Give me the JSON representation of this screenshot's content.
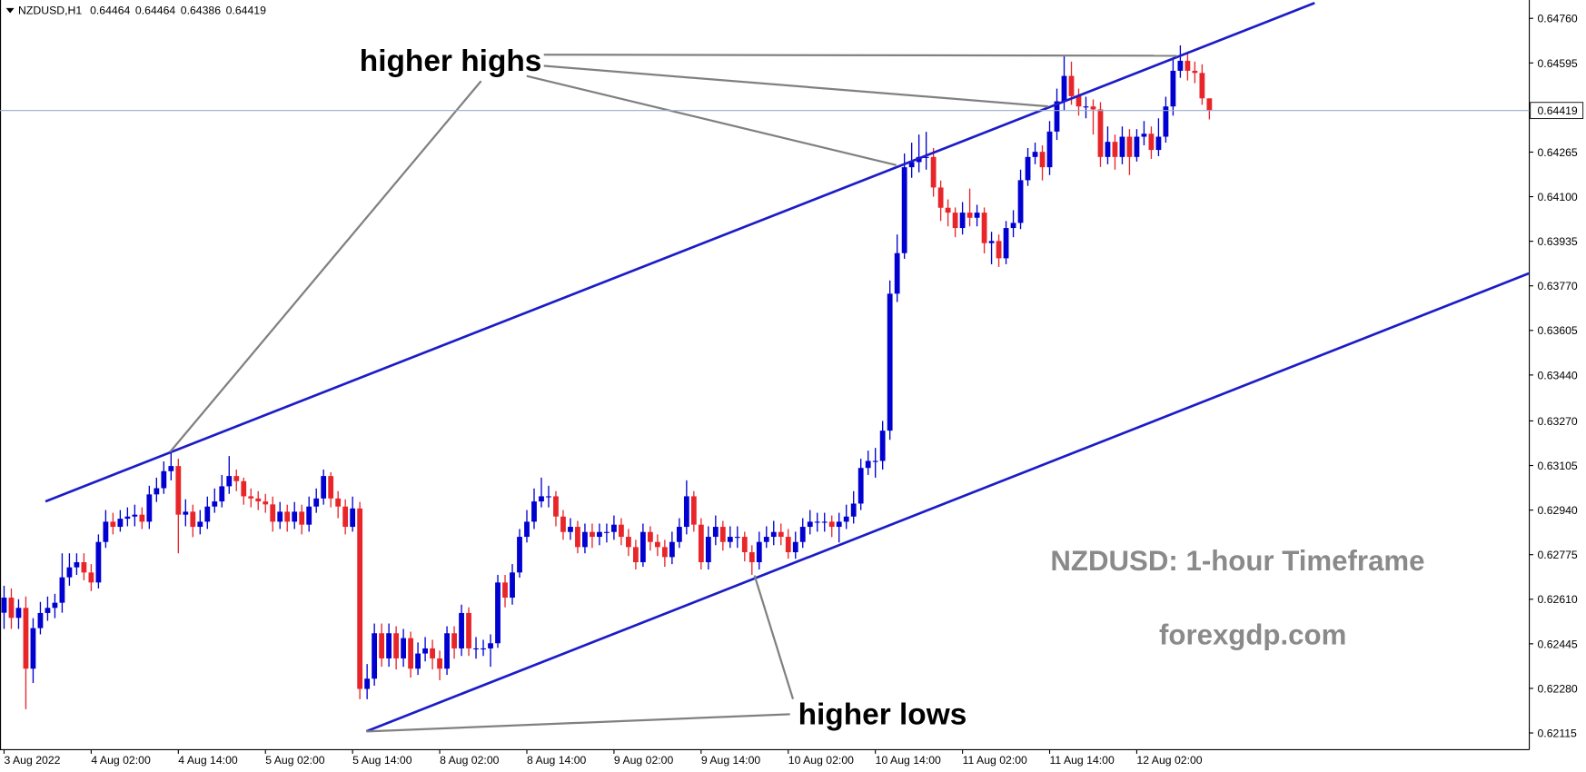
{
  "chart_data": {
    "type": "candlestick",
    "title": "NZDUSD,H1",
    "annotations": [
      "higher highs",
      "higher lows"
    ],
    "watermark": "NZDUSD: 1-hour Timeframe",
    "source": "forexgdp.com",
    "up_color": "#0000d0",
    "down_color": "#e8262a",
    "trendline_color": "#1c1cc8",
    "price_line_color": "#9aaecb",
    "xlim": [
      -0.56,
      210.06
    ],
    "ylim": [
      0.62053,
      0.64828
    ],
    "xticks": [
      {
        "value": 0,
        "label": "3 Aug 2022"
      },
      {
        "value": 12,
        "label": "4 Aug 02:00"
      },
      {
        "value": 24,
        "label": "4 Aug 14:00"
      },
      {
        "value": 36,
        "label": "5 Aug 02:00"
      },
      {
        "value": 48,
        "label": "5 Aug 14:00"
      },
      {
        "value": 60,
        "label": "8 Aug 02:00"
      },
      {
        "value": 72,
        "label": "8 Aug 14:00"
      },
      {
        "value": 84,
        "label": "9 Aug 02:00"
      },
      {
        "value": 96,
        "label": "9 Aug 14:00"
      },
      {
        "value": 108,
        "label": "10 Aug 02:00"
      },
      {
        "value": 120,
        "label": "10 Aug 14:00"
      },
      {
        "value": 132,
        "label": "11 Aug 02:00"
      },
      {
        "value": 144,
        "label": "11 Aug 14:00"
      },
      {
        "value": 156,
        "label": "12 Aug 02:00"
      }
    ],
    "yticks": [
      {
        "value": 0.6476,
        "label": "0.64760"
      },
      0.64595,
      0.64265,
      {
        "value": 0.641,
        "label": "0.64100"
      },
      0.63935,
      {
        "value": 0.6377,
        "label": "0.63770"
      },
      0.63605,
      {
        "value": 0.6344,
        "label": "0.63440"
      },
      {
        "value": 0.6327,
        "label": "0.63270"
      },
      0.63105,
      {
        "value": 0.6294,
        "label": "0.62940"
      },
      0.62775,
      {
        "value": 0.6261,
        "label": "0.62610"
      },
      0.62445,
      {
        "value": 0.6228,
        "label": "0.62280"
      },
      0.62115
    ],
    "trendlines": [
      {
        "x": [
          5.7,
          180.5
        ],
        "y": [
          0.62972,
          0.64817
        ]
      },
      {
        "x": [
          49.9,
          210.0
        ],
        "y": [
          0.62121,
          0.63816
        ]
      }
    ],
    "open": [
      0.6256,
      0.62616,
      0.62541,
      0.62578,
      0.62353,
      0.62503,
      0.62559,
      0.62578,
      0.62597,
      0.62691,
      0.62728,
      0.62747,
      0.62709,
      0.62672,
      0.62822,
      0.62897,
      0.62878,
      0.62908,
      0.62916,
      0.62923,
      0.62897,
      0.62998,
      0.63021,
      0.63084,
      0.63103,
      0.62923,
      0.62934,
      0.62878,
      0.62897,
      0.62953,
      0.62972,
      0.63028,
      0.63066,
      0.63047,
      0.62991,
      0.62983,
      0.62972,
      0.62961,
      0.62897,
      0.62934,
      0.62897,
      0.62934,
      0.62886,
      0.62953,
      0.62983,
      0.63066,
      0.62983,
      0.62953,
      0.62878,
      0.62946,
      0.62278,
      0.62316,
      0.62484,
      0.62391,
      0.62484,
      0.62391,
      0.62466,
      0.62353,
      0.62409,
      0.62428,
      0.62391,
      0.62353,
      0.62484,
      0.62428,
      0.62559,
      0.62428,
      0.62428,
      0.62428,
      0.62447,
      0.62672,
      0.62616,
      0.62709,
      0.62841,
      0.62897,
      0.62972,
      0.62991,
      0.62991,
      0.62916,
      0.62859,
      0.62878,
      0.62803,
      0.62859,
      0.62841,
      0.62859,
      0.62859,
      0.62886,
      0.62841,
      0.62803,
      0.62747,
      0.62859,
      0.62822,
      0.62803,
      0.62766,
      0.62822,
      0.62878,
      0.62991,
      0.62886,
      0.62747,
      0.62841,
      0.62878,
      0.62822,
      0.62841,
      0.62841,
      0.62784,
      0.62747,
      0.62822,
      0.62841,
      0.62859,
      0.62841,
      0.62784,
      0.62822,
      0.62878,
      0.62897,
      0.62897,
      0.62897,
      0.62878,
      0.62897,
      0.62916,
      0.62964,
      0.63096,
      0.63122,
      0.63122,
      0.63234,
      0.63741,
      0.63891,
      0.64209,
      0.64228,
      0.64247,
      0.64247,
      0.64134,
      0.64059,
      0.64041,
      0.63984,
      0.64041,
      0.64022,
      0.64041,
      0.63928,
      0.63936,
      0.63872,
      0.63984,
      0.64003,
      0.64161,
      0.64247,
      0.64266,
      0.64209,
      0.64341,
      0.64453,
      0.64547,
      0.64472,
      0.64434,
      0.64434,
      0.64423,
      0.64247,
      0.64303,
      0.64247,
      0.64322,
      0.64247,
      0.64322,
      0.64333,
      0.64273,
      0.64322,
      0.64434,
      0.64566,
      0.64603,
      0.64566,
      0.64558,
      0.64464
    ],
    "high": [
      0.6266,
      0.6265,
      0.6261,
      0.6262,
      0.6254,
      0.626,
      0.6262,
      0.6263,
      0.6278,
      0.6278,
      0.6278,
      0.6278,
      0.6274,
      0.6285,
      0.6294,
      0.6293,
      0.6294,
      0.6295,
      0.6296,
      0.6295,
      0.6303,
      0.6306,
      0.6312,
      0.6316,
      0.6313,
      0.6298,
      0.6296,
      0.6294,
      0.6299,
      0.6302,
      0.6307,
      0.6314,
      0.6309,
      0.6306,
      0.6302,
      0.6301,
      0.63,
      0.6299,
      0.6297,
      0.6296,
      0.6297,
      0.6296,
      0.6299,
      0.6302,
      0.6309,
      0.6308,
      0.6301,
      0.6298,
      0.6299,
      0.6297,
      0.6237,
      0.6252,
      0.6252,
      0.6252,
      0.6251,
      0.625,
      0.6249,
      0.6245,
      0.6247,
      0.6246,
      0.6242,
      0.6251,
      0.6251,
      0.6259,
      0.6258,
      0.6247,
      0.6246,
      0.6248,
      0.627,
      0.627,
      0.6274,
      0.6287,
      0.6294,
      0.6302,
      0.6306,
      0.6303,
      0.6301,
      0.6294,
      0.6291,
      0.629,
      0.6289,
      0.6289,
      0.6289,
      0.6289,
      0.6292,
      0.6291,
      0.6287,
      0.6283,
      0.6289,
      0.6288,
      0.6285,
      0.6283,
      0.6286,
      0.6291,
      0.6305,
      0.6301,
      0.6291,
      0.6288,
      0.6292,
      0.629,
      0.6288,
      0.6288,
      0.6286,
      0.6281,
      0.6286,
      0.6288,
      0.629,
      0.6289,
      0.6287,
      0.6286,
      0.6291,
      0.6294,
      0.6293,
      0.6293,
      0.6292,
      0.6293,
      0.6296,
      0.6301,
      0.6313,
      0.6316,
      0.6317,
      0.6327,
      0.6379,
      0.6396,
      0.6426,
      0.643,
      0.6433,
      0.6434,
      0.6428,
      0.6416,
      0.6409,
      0.6406,
      0.6408,
      0.6413,
      0.6407,
      0.6406,
      0.6397,
      0.6396,
      0.6401,
      0.6405,
      0.642,
      0.6428,
      0.643,
      0.6429,
      0.6438,
      0.645,
      0.6462,
      0.646,
      0.645,
      0.6447,
      0.6446,
      0.6445,
      0.6436,
      0.6433,
      0.6436,
      0.6435,
      0.6435,
      0.6438,
      0.6436,
      0.6439,
      0.6447,
      0.6461,
      0.6466,
      0.6463,
      0.646,
      0.6459,
      0.64464
    ],
    "low": [
      0.625,
      0.625,
      0.625,
      0.62203,
      0.623,
      0.6248,
      0.6253,
      0.6254,
      0.6256,
      0.6266,
      0.627,
      0.6268,
      0.6264,
      0.6265,
      0.628,
      0.6285,
      0.6286,
      0.6288,
      0.6288,
      0.6287,
      0.6287,
      0.6297,
      0.63,
      0.6305,
      0.6278,
      0.6288,
      0.6284,
      0.6285,
      0.6287,
      0.6293,
      0.6295,
      0.63,
      0.6301,
      0.6296,
      0.6295,
      0.6294,
      0.6293,
      0.6286,
      0.6287,
      0.6286,
      0.6287,
      0.6285,
      0.6286,
      0.6293,
      0.6296,
      0.6295,
      0.6291,
      0.6285,
      0.6286,
      0.6224,
      0.6224,
      0.6229,
      0.6236,
      0.6236,
      0.6235,
      0.6236,
      0.6232,
      0.6233,
      0.6238,
      0.6235,
      0.6231,
      0.6233,
      0.6239,
      0.624,
      0.624,
      0.6239,
      0.624,
      0.6236,
      0.6243,
      0.6258,
      0.6259,
      0.6269,
      0.6282,
      0.6287,
      0.6295,
      0.6295,
      0.6288,
      0.6283,
      0.6283,
      0.6278,
      0.6278,
      0.628,
      0.6281,
      0.6282,
      0.6283,
      0.6281,
      0.6277,
      0.6272,
      0.6273,
      0.6279,
      0.6277,
      0.6273,
      0.6274,
      0.628,
      0.6285,
      0.6286,
      0.6272,
      0.6272,
      0.6281,
      0.6279,
      0.628,
      0.628,
      0.6275,
      0.627,
      0.6272,
      0.628,
      0.6281,
      0.6281,
      0.6276,
      0.6276,
      0.628,
      0.6285,
      0.6286,
      0.6286,
      0.6284,
      0.6282,
      0.6287,
      0.6289,
      0.6294,
      0.6307,
      0.6306,
      0.6309,
      0.632,
      0.6371,
      0.6387,
      0.6417,
      0.6419,
      0.642,
      0.641,
      0.6401,
      0.6399,
      0.6395,
      0.6396,
      0.6399,
      0.6399,
      0.6389,
      0.6385,
      0.6384,
      0.6385,
      0.6395,
      0.6398,
      0.6414,
      0.6422,
      0.6416,
      0.6418,
      0.6431,
      0.6442,
      0.6444,
      0.644,
      0.6439,
      0.6433,
      0.6421,
      0.6422,
      0.642,
      0.6422,
      0.6418,
      0.6423,
      0.6429,
      0.6424,
      0.6425,
      0.643,
      0.644,
      0.6454,
      0.6453,
      0.6452,
      0.6444,
      0.64386
    ],
    "close": [
      0.62616,
      0.62541,
      0.62578,
      0.62353,
      0.62503,
      0.62559,
      0.62578,
      0.62597,
      0.62691,
      0.62728,
      0.62747,
      0.62709,
      0.62672,
      0.62822,
      0.62897,
      0.62878,
      0.62908,
      0.62916,
      0.62923,
      0.62897,
      0.62998,
      0.63021,
      0.63084,
      0.63103,
      0.62923,
      0.62934,
      0.62878,
      0.62897,
      0.62953,
      0.62972,
      0.63028,
      0.63066,
      0.63047,
      0.62991,
      0.62983,
      0.62972,
      0.62961,
      0.62897,
      0.62934,
      0.62897,
      0.62934,
      0.62886,
      0.62953,
      0.62983,
      0.63066,
      0.62983,
      0.62953,
      0.62878,
      0.62946,
      0.62278,
      0.62316,
      0.62484,
      0.62391,
      0.62484,
      0.62391,
      0.62466,
      0.62353,
      0.62409,
      0.62428,
      0.62391,
      0.62353,
      0.62484,
      0.62428,
      0.62559,
      0.62428,
      0.62428,
      0.62428,
      0.62447,
      0.62672,
      0.62616,
      0.62709,
      0.62841,
      0.62897,
      0.62972,
      0.62991,
      0.62991,
      0.62916,
      0.62859,
      0.62878,
      0.62803,
      0.62859,
      0.62841,
      0.62859,
      0.62859,
      0.62886,
      0.62841,
      0.62803,
      0.62747,
      0.62859,
      0.62822,
      0.62803,
      0.62766,
      0.62822,
      0.62878,
      0.62991,
      0.62886,
      0.62747,
      0.62841,
      0.62878,
      0.62822,
      0.62841,
      0.62841,
      0.62784,
      0.62747,
      0.62822,
      0.62841,
      0.62859,
      0.62841,
      0.62784,
      0.62822,
      0.62878,
      0.62897,
      0.62897,
      0.62897,
      0.62878,
      0.62897,
      0.62916,
      0.62964,
      0.63096,
      0.63122,
      0.63122,
      0.63234,
      0.63741,
      0.63891,
      0.64209,
      0.64228,
      0.64247,
      0.64247,
      0.64134,
      0.64059,
      0.64041,
      0.63984,
      0.64041,
      0.64022,
      0.64041,
      0.63928,
      0.63936,
      0.63872,
      0.63984,
      0.64003,
      0.64161,
      0.64247,
      0.64266,
      0.64209,
      0.64341,
      0.64453,
      0.64547,
      0.64472,
      0.64434,
      0.64434,
      0.64423,
      0.64247,
      0.64303,
      0.64247,
      0.64322,
      0.64247,
      0.64322,
      0.64333,
      0.64273,
      0.64322,
      0.64434,
      0.64566,
      0.64603,
      0.64566,
      0.64558,
      0.64464,
      0.64419
    ]
  }
}
